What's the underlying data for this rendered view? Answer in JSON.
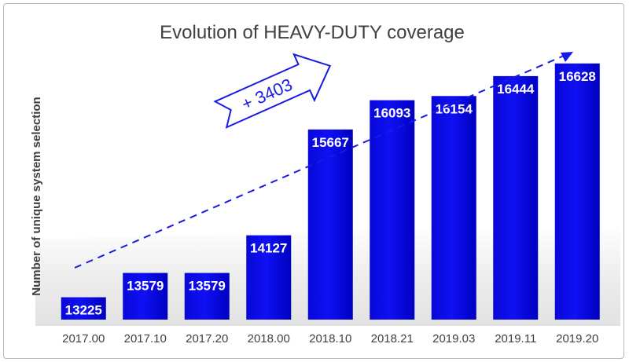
{
  "chart_data": {
    "type": "bar",
    "title": "Evolution of HEAVY-DUTY coverage",
    "xlabel": "",
    "ylabel": "Number of unique system selection",
    "categories": [
      "2017.00",
      "2017.10",
      "2017.20",
      "2018.00",
      "2018.10",
      "2018.21",
      "2019.03",
      "2019.11",
      "2019.20"
    ],
    "values": [
      13225,
      13579,
      13579,
      14127,
      15667,
      16093,
      16154,
      16444,
      16628
    ],
    "ylim": [
      12900,
      16900
    ],
    "grid": false,
    "legend": "none",
    "annotations": [
      {
        "text": "+ 3403",
        "type": "arrow-callout"
      }
    ],
    "trendline": {
      "style": "dashed",
      "color": "#1a1ae6"
    }
  },
  "colors": {
    "bar": "#0a0ae8",
    "bar_dark": "#0000a8",
    "title": "#404040",
    "value_label": "#ffffff",
    "arrow": "#1a1ae6"
  }
}
